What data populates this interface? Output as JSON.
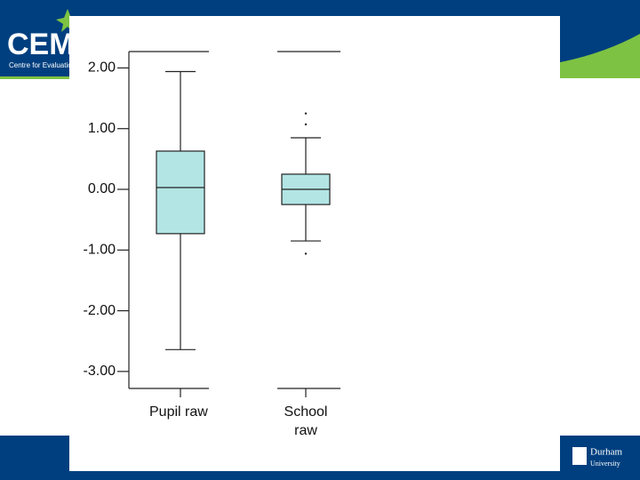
{
  "chart_data": {
    "type": "boxplot",
    "categories": [
      "Pupil raw",
      "School raw"
    ],
    "boxes": [
      {
        "whislo": -2.64,
        "q1": -0.73,
        "med": 0.03,
        "q3": 0.63,
        "whishi": 1.94,
        "fliers": []
      },
      {
        "whislo": -0.85,
        "q1": -0.25,
        "med": 0.0,
        "q3": 0.25,
        "whishi": 0.85,
        "fliers": [
          1.25,
          1.07,
          -1.06
        ]
      }
    ],
    "color": "#b3e5e5",
    "ylim": [
      -3.28,
      2.27
    ],
    "yticks": [
      {
        "value": 2,
        "label": "2.00"
      },
      {
        "value": 1,
        "label": "1.00"
      },
      {
        "value": 0,
        "label": "0.00"
      },
      {
        "value": -1,
        "label": "-1.00"
      },
      {
        "value": -2,
        "label": "-2.00"
      },
      {
        "value": -3,
        "label": "-3.00"
      }
    ]
  },
  "logos": {
    "cem": "CEM",
    "cem_subtitle": "Centre for Evaluation",
    "durham": "Durham",
    "durham_sub": "University"
  }
}
